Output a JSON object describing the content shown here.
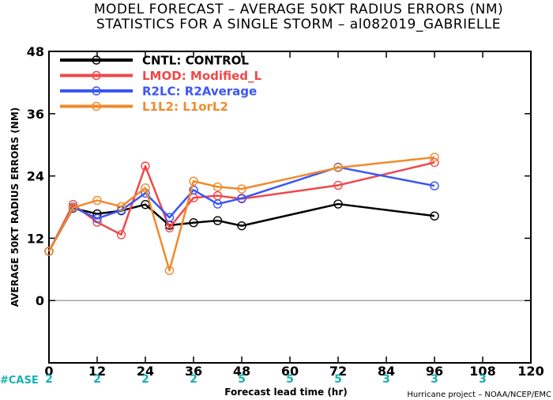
{
  "chart_data": {
    "type": "line",
    "title": "MODEL FORECAST – AVERAGE 50KT RADIUS ERRORS (NM)",
    "subtitle": "STATISTICS FOR A SINGLE STORM – al082019_GABRIELLE",
    "xlabel": "Forecast lead time (hr)",
    "ylabel": "AVERAGE 50KT RADIUS ERRORS (NM)",
    "xlim": [
      0,
      120
    ],
    "ylim": [
      -12,
      48
    ],
    "xticks": [
      0,
      12,
      24,
      36,
      48,
      60,
      72,
      84,
      96,
      108,
      120
    ],
    "yticks": [
      0,
      12,
      24,
      36,
      48
    ],
    "zero_line": true,
    "legend_position": "top-left",
    "credit": "Hurricane project – NOAA/NCEP/EMC",
    "case_label": "#CASE",
    "cases": [
      {
        "x": 0,
        "n": "2"
      },
      {
        "x": 12,
        "n": "2"
      },
      {
        "x": 24,
        "n": "2"
      },
      {
        "x": 36,
        "n": "2"
      },
      {
        "x": 48,
        "n": "5"
      },
      {
        "x": 60,
        "n": "5"
      },
      {
        "x": 72,
        "n": "5"
      },
      {
        "x": 84,
        "n": "3"
      },
      {
        "x": 96,
        "n": "3"
      },
      {
        "x": 108,
        "n": "3"
      }
    ],
    "colors": {
      "case": "#1ab0b0",
      "zero_line": "#888888"
    },
    "series": [
      {
        "name": "CNTL: CONTROL",
        "color": "#000000",
        "x": [
          0,
          6,
          12,
          18,
          24,
          30,
          36,
          42,
          48,
          72,
          96
        ],
        "y": [
          9.5,
          17.8,
          16.7,
          17.3,
          18.5,
          14.5,
          15.0,
          15.4,
          14.4,
          18.6,
          16.3
        ]
      },
      {
        "name": "LMOD: Modified_L",
        "color": "#f0484a",
        "x": [
          0,
          6,
          12,
          18,
          24,
          30,
          36,
          42,
          48,
          72,
          96
        ],
        "y": [
          9.5,
          18.5,
          15.1,
          12.7,
          25.9,
          14.0,
          19.8,
          20.2,
          19.6,
          22.2,
          26.6
        ]
      },
      {
        "name": "R2LC: R2Average",
        "color": "#3b55f5",
        "x": [
          0,
          6,
          12,
          18,
          24,
          30,
          36,
          42,
          48,
          72,
          96
        ],
        "y": [
          9.5,
          18.0,
          15.8,
          17.4,
          20.7,
          16.0,
          21.3,
          18.6,
          19.7,
          25.7,
          22.1
        ]
      },
      {
        "name": "L1L2: L1orL2",
        "color": "#f08a2b",
        "x": [
          0,
          6,
          12,
          18,
          24,
          30,
          36,
          42,
          48,
          72,
          96
        ],
        "y": [
          9.5,
          17.9,
          19.3,
          18.1,
          21.7,
          5.8,
          23.0,
          21.9,
          21.5,
          25.6,
          27.6
        ]
      }
    ]
  }
}
